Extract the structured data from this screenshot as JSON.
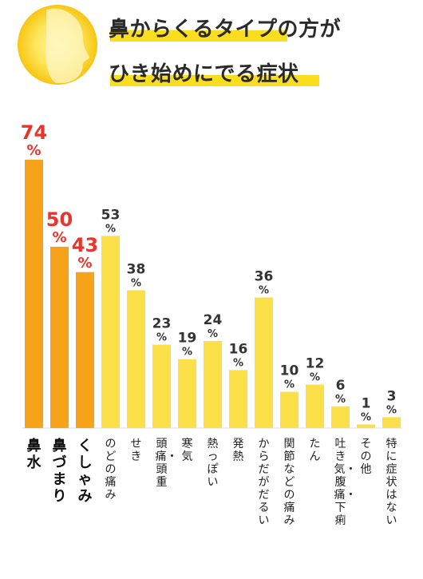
{
  "title_lines": [
    "鼻からくるタイプの方が",
    "ひき始めにでる症状"
  ],
  "colors": {
    "major_bar": "#f7a21b",
    "minor_bar": "#fbe04a",
    "major_label": "#e8352c",
    "minor_label": "#333333",
    "accent": "#fadd1f"
  },
  "percent_sign": "%",
  "chart_data": {
    "type": "bar",
    "title": "鼻からくるタイプの方がひき始めにでる症状",
    "categories": [
      "鼻水",
      "鼻づまり",
      "くしゃみ",
      "のどの痛み",
      "せき",
      "頭痛・頭重",
      "寒気",
      "熱っぽい",
      "発熱",
      "からだがだるい",
      "関節などの痛み",
      "たん",
      "吐き気・腹痛・下痢",
      "その他",
      "特に症状はない"
    ],
    "values": [
      74,
      50,
      43,
      53,
      38,
      23,
      19,
      24,
      16,
      36,
      10,
      12,
      6,
      1,
      3
    ],
    "unit": "%",
    "highlighted": [
      "鼻水",
      "鼻づまり",
      "くしゃみ"
    ],
    "ylim": [
      0,
      74
    ],
    "grid": false,
    "legend": "none"
  }
}
